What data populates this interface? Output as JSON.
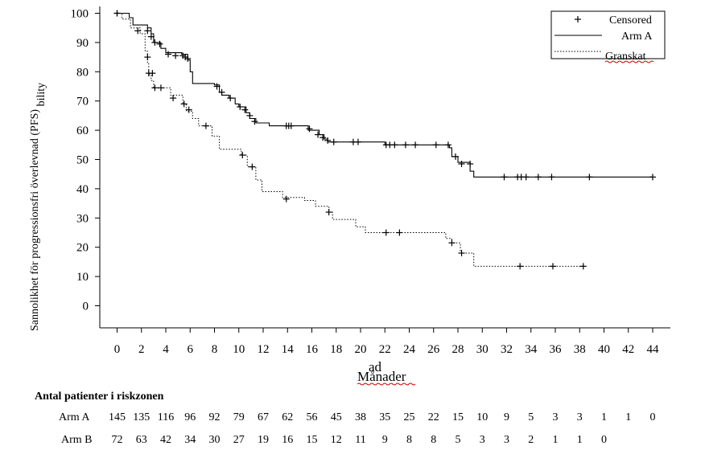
{
  "chart_data": {
    "type": "line",
    "title": "",
    "xlabel": "Månader",
    "xlabel_overlap_fragment": "ad",
    "ylabel_main": "Sannolikhet för progressionsfri överlevnad (PFS)",
    "ylabel_sub": "bility",
    "xlim": [
      -1.5,
      45.5
    ],
    "ylim": [
      -8,
      100
    ],
    "x_ticks": [
      0,
      2,
      4,
      6,
      8,
      10,
      12,
      14,
      16,
      18,
      20,
      22,
      24,
      26,
      28,
      30,
      32,
      34,
      36,
      38,
      40,
      42,
      44
    ],
    "y_ticks": [
      0,
      10,
      20,
      30,
      40,
      50,
      60,
      70,
      80,
      90,
      100
    ],
    "grid": false,
    "legend": {
      "position": "top-right",
      "entries": [
        {
          "label": "Censored",
          "style": "plus"
        },
        {
          "label": "Arm A",
          "style": "solid"
        },
        {
          "label": "Granskat",
          "style": "dotted"
        }
      ]
    },
    "series": [
      {
        "name": "Arm A",
        "style": "solid",
        "steps": [
          [
            0,
            100
          ],
          [
            1,
            98.5
          ],
          [
            1.3,
            96
          ],
          [
            2.5,
            95
          ],
          [
            2.8,
            93
          ],
          [
            3,
            90
          ],
          [
            3.6,
            88
          ],
          [
            4,
            86.5
          ],
          [
            5.3,
            86
          ],
          [
            5.8,
            84
          ],
          [
            6,
            80
          ],
          [
            6.2,
            76
          ],
          [
            8,
            75.5
          ],
          [
            8.4,
            73
          ],
          [
            8.6,
            72
          ],
          [
            9.2,
            71
          ],
          [
            9.7,
            69
          ],
          [
            10,
            68
          ],
          [
            10.6,
            66
          ],
          [
            10.9,
            64
          ],
          [
            11.4,
            62.5
          ],
          [
            12.5,
            61.5
          ],
          [
            15.7,
            60
          ],
          [
            16.6,
            58.5
          ],
          [
            17,
            57
          ],
          [
            17.3,
            56
          ],
          [
            22,
            55
          ],
          [
            27.3,
            54
          ],
          [
            27.5,
            51
          ],
          [
            28,
            49
          ],
          [
            29,
            46
          ],
          [
            29.3,
            44
          ],
          [
            44,
            44
          ]
        ],
        "censor": [
          [
            0,
            100
          ],
          [
            2.5,
            94
          ],
          [
            2.8,
            92
          ],
          [
            3.1,
            90
          ],
          [
            3.5,
            89.5
          ],
          [
            4.2,
            86
          ],
          [
            4.8,
            85.5
          ],
          [
            5.4,
            85.5
          ],
          [
            5.6,
            85
          ],
          [
            5.8,
            84.5
          ],
          [
            8.2,
            75
          ],
          [
            8.6,
            73
          ],
          [
            9.3,
            71
          ],
          [
            10.1,
            68
          ],
          [
            10.5,
            67
          ],
          [
            10.9,
            65
          ],
          [
            11.3,
            63
          ],
          [
            13.9,
            61.5
          ],
          [
            14.1,
            61.5
          ],
          [
            14.3,
            61.5
          ],
          [
            15.8,
            60.5
          ],
          [
            16.5,
            58.5
          ],
          [
            16.9,
            57.5
          ],
          [
            17.3,
            56.5
          ],
          [
            17.8,
            56
          ],
          [
            19.4,
            56
          ],
          [
            19.8,
            56
          ],
          [
            22.1,
            55
          ],
          [
            22.4,
            55
          ],
          [
            22.8,
            55
          ],
          [
            23.7,
            55
          ],
          [
            24.5,
            55
          ],
          [
            26.2,
            55
          ],
          [
            27.2,
            55
          ],
          [
            27.8,
            51
          ],
          [
            28.3,
            48.5
          ],
          [
            29,
            48.5
          ],
          [
            31.8,
            44
          ],
          [
            32.9,
            44
          ],
          [
            33.2,
            44
          ],
          [
            33.6,
            44
          ],
          [
            34.6,
            44
          ],
          [
            35.7,
            44
          ],
          [
            38.8,
            44
          ],
          [
            44,
            44
          ]
        ]
      },
      {
        "name": "Granskat",
        "style": "dotted",
        "steps": [
          [
            0,
            100
          ],
          [
            0.4,
            98
          ],
          [
            1.1,
            95
          ],
          [
            1.9,
            93
          ],
          [
            2.3,
            87
          ],
          [
            2.5,
            83
          ],
          [
            2.6,
            79
          ],
          [
            2.8,
            77
          ],
          [
            3,
            74.5
          ],
          [
            4.4,
            72
          ],
          [
            5.4,
            69
          ],
          [
            5.7,
            66.5
          ],
          [
            6.2,
            64
          ],
          [
            6.7,
            61.5
          ],
          [
            7.8,
            58
          ],
          [
            8.4,
            53.5
          ],
          [
            10.2,
            51.5
          ],
          [
            10.7,
            47.5
          ],
          [
            11.4,
            43
          ],
          [
            11.9,
            39
          ],
          [
            13.6,
            37
          ],
          [
            15.4,
            36
          ],
          [
            16.3,
            34
          ],
          [
            17.4,
            32
          ],
          [
            17.7,
            29.5
          ],
          [
            19.6,
            27
          ],
          [
            20.4,
            25
          ],
          [
            27,
            23
          ],
          [
            27.5,
            21.5
          ],
          [
            28.2,
            18
          ],
          [
            29.3,
            13.5
          ],
          [
            38.3,
            13.5
          ]
        ],
        "censor": [
          [
            0,
            100
          ],
          [
            1.7,
            94
          ],
          [
            2.5,
            85
          ],
          [
            2.6,
            79.5
          ],
          [
            2.9,
            79.5
          ],
          [
            3.1,
            74.5
          ],
          [
            3.6,
            74.5
          ],
          [
            4.6,
            71
          ],
          [
            5.5,
            69
          ],
          [
            5.9,
            67
          ],
          [
            7.3,
            61.5
          ],
          [
            10.3,
            51.5
          ],
          [
            11.1,
            47.5
          ],
          [
            13.9,
            36.5
          ],
          [
            17.4,
            32
          ],
          [
            22.1,
            25
          ],
          [
            23.2,
            25
          ],
          [
            27.5,
            21.5
          ],
          [
            28.3,
            18
          ],
          [
            33.1,
            13.5
          ],
          [
            35.8,
            13.5
          ],
          [
            38.3,
            13.5
          ]
        ]
      }
    ],
    "risk_table": {
      "title": "Antal patienter i riskzonen",
      "rows": [
        {
          "label": "Arm A",
          "values": [
            "145",
            "135",
            "116",
            "96",
            "92",
            "79",
            "67",
            "62",
            "56",
            "45",
            "38",
            "35",
            "25",
            "22",
            "15",
            "10",
            "9",
            "5",
            "3",
            "3",
            "1",
            "1",
            "0"
          ]
        },
        {
          "label": "Arm B",
          "values": [
            "72",
            "63",
            "42",
            "34",
            "30",
            "27",
            "19",
            "16",
            "15",
            "12",
            "11",
            "9",
            "8",
            "8",
            "5",
            "3",
            "3",
            "2",
            "1",
            "1",
            "0"
          ]
        }
      ]
    }
  }
}
